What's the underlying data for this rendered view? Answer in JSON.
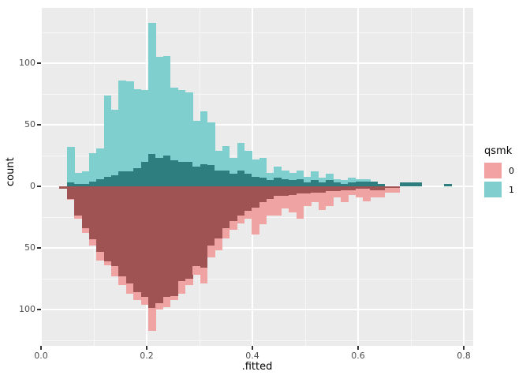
{
  "figure": {
    "background": "#ffffff",
    "panel_background": "#ebebeb",
    "grid_major_color": "#ffffff",
    "grid_minor_color": "rgba(255,255,255,0.55)",
    "tick_color": "#333333",
    "tick_label_color": "#4d4d4d"
  },
  "chart_data": {
    "type": "bar",
    "subtype": "mirrored-histogram",
    "title": "",
    "xlabel": ".fitted",
    "ylabel": "count",
    "x_tick_values": [
      0.0,
      0.2,
      0.4,
      0.6,
      0.8
    ],
    "x_tick_labels": [
      "0.0",
      "0.2",
      "0.4",
      "0.6",
      "0.8"
    ],
    "x_minor_values": [
      0.1,
      0.3,
      0.5,
      0.7
    ],
    "y_tick_counts": [
      100,
      50,
      0,
      -50,
      -100
    ],
    "y_tick_labels": [
      "100",
      "50",
      "0",
      "50",
      "100"
    ],
    "y_minor_counts": [
      125,
      75,
      25,
      -25,
      -75,
      -125
    ],
    "xlim": [
      0,
      0.818
    ],
    "ylim_counts": [
      -130,
      145
    ],
    "grid": true,
    "legend": {
      "title": "qsmk",
      "position": "right",
      "items": [
        {
          "label": "0",
          "color": "#F2A2A2"
        },
        {
          "label": "1",
          "color": "#80CECE"
        }
      ]
    },
    "bins": {
      "start": 0.035,
      "width": 0.014,
      "count": 54
    },
    "series": [
      {
        "name": "qsmk 1 (upward, light teal)",
        "direction": "up",
        "color": "#7FCFCF",
        "values": [
          0,
          32,
          11,
          12,
          27,
          31,
          74,
          62,
          86,
          85,
          79,
          78,
          133,
          105,
          106,
          80,
          78,
          76,
          53,
          61,
          52,
          29,
          33,
          23,
          35,
          29,
          22,
          23,
          11,
          16,
          13,
          11,
          13,
          8,
          12,
          7,
          10,
          6,
          5,
          7,
          6,
          6,
          4,
          2,
          0,
          0,
          3,
          3,
          3,
          0,
          0,
          0,
          2,
          0
        ]
      },
      {
        "name": "qsmk 1 overlap (dark teal)",
        "direction": "up",
        "color": "#2E7E80",
        "values": [
          0,
          3,
          2,
          2,
          4,
          6,
          8,
          9,
          12,
          12,
          15,
          20,
          26,
          23,
          25,
          21,
          20,
          20,
          16,
          18,
          17,
          13,
          13,
          10,
          13,
          10,
          8,
          7,
          5,
          7,
          6,
          5,
          6,
          3,
          5,
          3,
          5,
          3,
          2,
          3,
          4,
          4,
          4,
          2,
          0,
          0,
          3,
          3,
          3,
          0,
          0,
          0,
          2,
          0
        ]
      },
      {
        "name": "qsmk 0 (downward, light pink)",
        "direction": "down",
        "color": "#F0A3A3",
        "values": [
          2,
          11,
          26,
          38,
          48,
          60,
          64,
          73,
          80,
          87,
          92,
          96,
          117,
          100,
          98,
          92,
          87,
          80,
          72,
          79,
          58,
          52,
          42,
          35,
          30,
          26,
          39,
          31,
          24,
          24,
          18,
          21,
          26,
          16,
          13,
          19,
          16,
          9,
          13,
          7,
          9,
          12,
          9,
          9,
          5,
          5,
          0,
          0,
          0,
          0,
          0,
          0,
          0,
          0
        ]
      },
      {
        "name": "qsmk 0 overlap (dark red)",
        "direction": "down",
        "color": "#9F5353",
        "values": [
          2,
          10,
          24,
          34,
          43,
          53,
          61,
          65,
          73,
          79,
          86,
          90,
          99,
          95,
          90,
          89,
          77,
          75,
          65,
          66,
          48,
          42,
          34,
          28,
          24,
          20,
          17,
          13,
          10,
          8,
          8,
          7,
          6,
          6,
          5,
          5,
          4,
          4,
          3,
          3,
          2,
          2,
          3,
          3,
          1,
          1,
          0,
          0,
          0,
          0,
          0,
          0,
          0,
          0
        ]
      }
    ]
  }
}
